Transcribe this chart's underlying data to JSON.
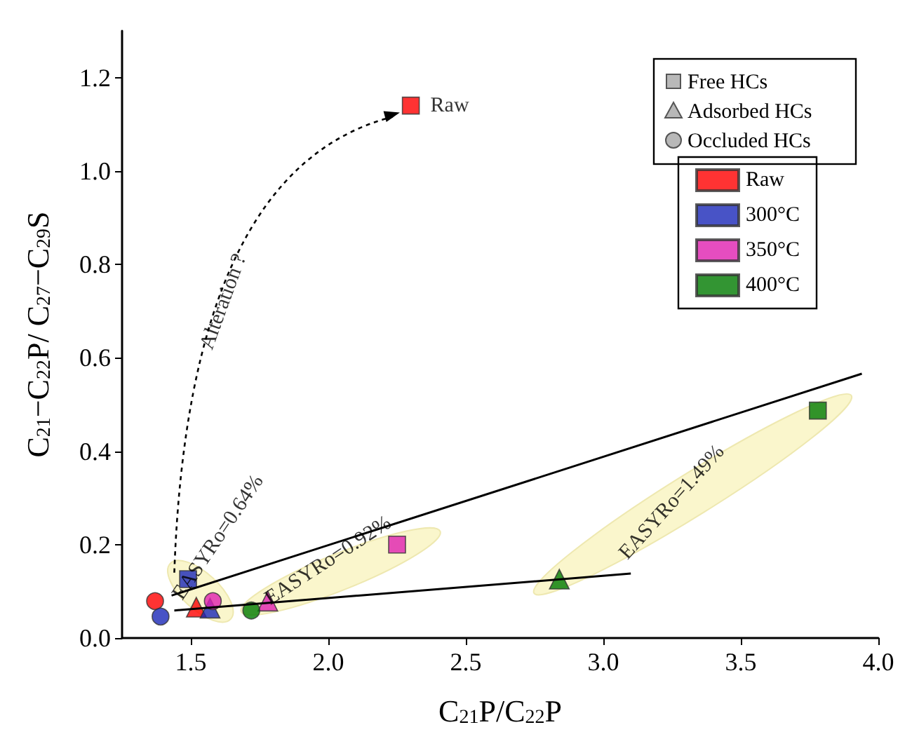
{
  "chart_data": {
    "type": "scatter",
    "xlabel": "C$_{21}$P/C$_{22}$P",
    "ylabel": "C$_{21}$−C$_{22}$P/ C$_{27}$−C$_{29}$S",
    "xlim": [
      1.25,
      4.0
    ],
    "xticks": [
      1.5,
      {
        "value": 2.0,
        "label": "2.0"
      },
      2.5,
      {
        "value": 3.0,
        "label": "3.0"
      },
      3.5,
      {
        "value": 4.0,
        "label": "4.0"
      }
    ],
    "ylim": [
      0,
      1.3
    ],
    "yticks": [
      {
        "value": 0,
        "label": "0.0"
      },
      0.2,
      0.4,
      0.6,
      0.8,
      {
        "value": 1.0,
        "label": "1.0"
      },
      1.2
    ],
    "grid": false,
    "legend": "top right",
    "series": [
      {
        "name": "Raw",
        "marker": [
          "square",
          "triangle",
          "circle"
        ],
        "color": "#ff0000",
        "x": [
          2.3,
          1.52,
          1.37
        ],
        "values": [
          1.14,
          0.066,
          0.079
        ]
      },
      {
        "name": "300°C",
        "marker": [
          "square",
          "triangle",
          "circle"
        ],
        "color": "#1a28b8",
        "x": [
          1.49,
          1.57,
          1.39
        ],
        "values": [
          0.126,
          0.064,
          0.046
        ]
      },
      {
        "name": "350°C",
        "marker": [
          "square",
          "triangle",
          "circle"
        ],
        "color": "#e020b0",
        "x": [
          2.25,
          1.78,
          1.58
        ],
        "values": [
          0.2,
          0.079,
          0.079
        ]
      },
      {
        "name": "400°C",
        "marker": [
          "square",
          "triangle",
          "circle"
        ],
        "color": "#007a00",
        "x": [
          3.78,
          2.84,
          1.72
        ],
        "values": [
          0.487,
          0.126,
          0.059
        ]
      },
      {
        "type": "line",
        "marker": "none",
        "color": "#000000",
        "x": [
          1.43,
          3.94
        ],
        "values": [
          0.091,
          0.566
        ]
      },
      {
        "type": "line",
        "marker": "none",
        "color": "#000000",
        "x": [
          1.44,
          3.1
        ],
        "values": [
          0.059,
          0.138
        ]
      }
    ],
    "annotations": [
      {
        "text": "Raw",
        "x": 2.3,
        "y": 1.14
      },
      "Alteration ?",
      "EASYRo=0.64%",
      "EASYRo=0.92%",
      "EASYRo=1.49%",
      "Free HCs",
      "Adsorbed HCs",
      "Occluded HCs"
    ]
  }
}
